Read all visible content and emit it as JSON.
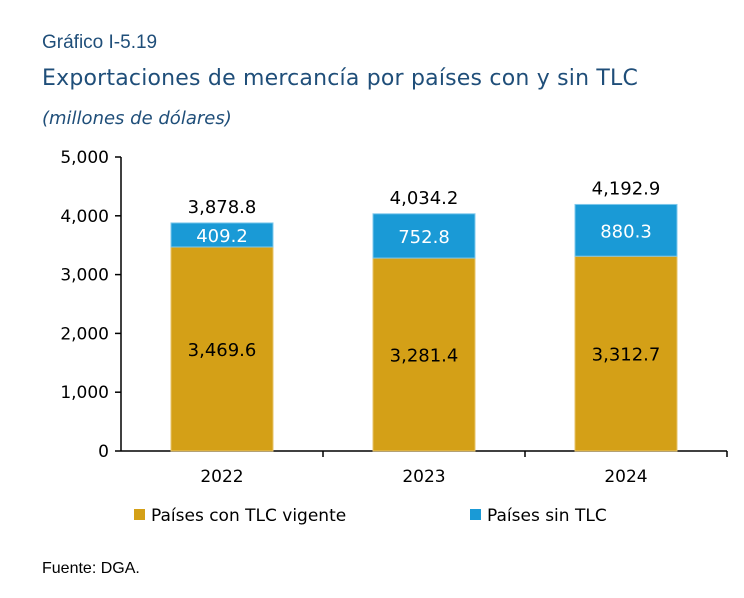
{
  "header": {
    "label": "Gráfico I-5.19",
    "title": "Exportaciones de mercancía por países con y sin TLC",
    "units": "(millones de dólares)"
  },
  "footer": {
    "source": "Fuente: DGA."
  },
  "colors": {
    "con_tlc": "#D4A017",
    "sin_tlc": "#1A9AD6",
    "axis": "#000000",
    "title": "#1F4E79"
  },
  "chart_data": {
    "type": "bar",
    "stacked": true,
    "categories": [
      "2022",
      "2023",
      "2024"
    ],
    "series": [
      {
        "name": "Países con TLC vigente",
        "values": [
          3469.6,
          3281.4,
          3312.7
        ],
        "labels": [
          "3,469.6",
          "3,281.4",
          "3,312.7"
        ],
        "color": "#D4A017"
      },
      {
        "name": "Países sin TLC",
        "values": [
          409.2,
          752.8,
          880.3
        ],
        "labels": [
          "409.2",
          "752.8",
          "880.3"
        ],
        "color": "#1A9AD6"
      }
    ],
    "totals": [
      3878.8,
      4034.2,
      4192.9
    ],
    "total_labels": [
      "3,878.8",
      "4,034.2",
      "4,192.9"
    ],
    "ylim": [
      0,
      5000
    ],
    "yticks": [
      0,
      1000,
      2000,
      3000,
      4000,
      5000
    ],
    "ytick_labels": [
      "0",
      "1,000",
      "2,000",
      "3,000",
      "4,000",
      "5,000"
    ],
    "grid": false,
    "legend": "bottom"
  }
}
